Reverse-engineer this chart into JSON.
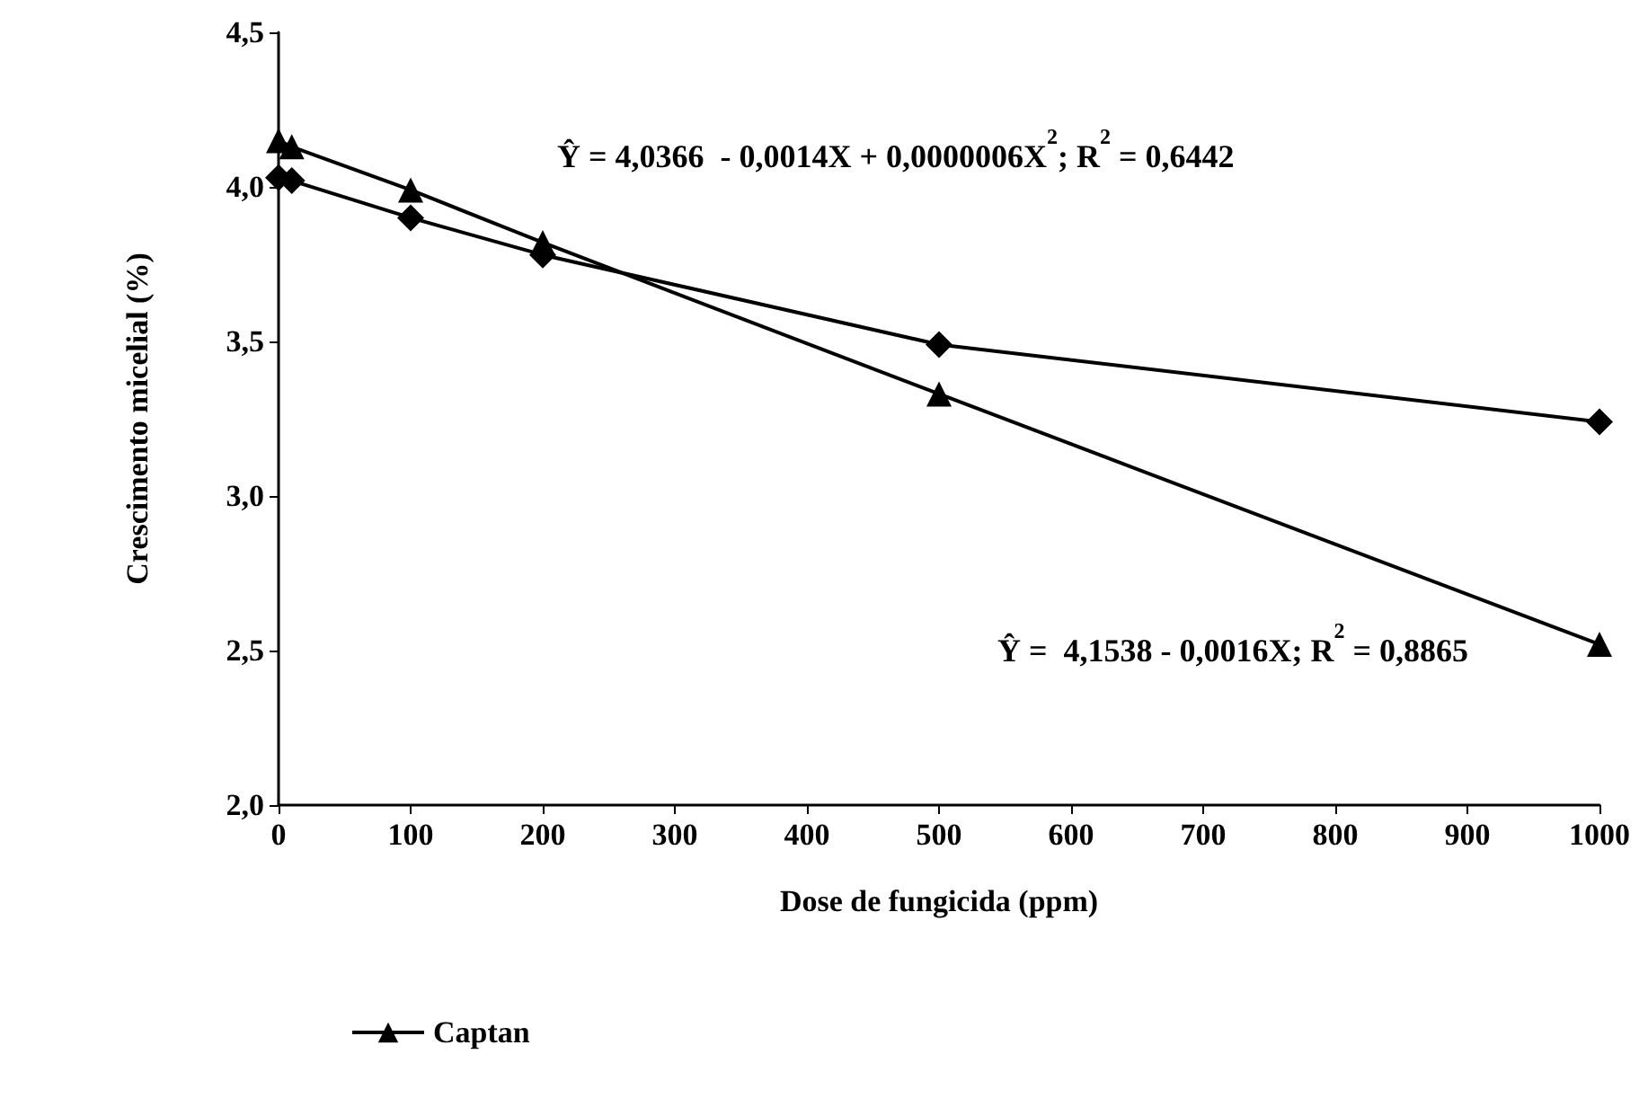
{
  "chart_data": {
    "type": "line",
    "xlabel": "Dose de fungicida (ppm)",
    "ylabel": "Crescimento micelial (%)",
    "x": [
      0,
      10,
      100,
      200,
      500,
      1000
    ],
    "series": [
      {
        "name": "Captan",
        "color": "#000000",
        "marker": "triangle",
        "values": [
          4.15,
          4.13,
          3.99,
          3.82,
          3.33,
          2.52
        ]
      },
      {
        "color": "#000000",
        "marker": "diamond",
        "values": [
          4.03,
          4.02,
          3.9,
          3.78,
          3.49,
          3.24
        ]
      }
    ],
    "xlim": [
      0,
      1000
    ],
    "xticks": [
      0,
      100,
      200,
      300,
      400,
      500,
      600,
      700,
      800,
      900,
      1000
    ],
    "ylim": [
      2,
      4.5
    ],
    "yticks": [
      {
        "value": 2,
        "label": "2,0"
      },
      {
        "value": 2.5,
        "label": "2,5"
      },
      {
        "value": 3,
        "label": "3,0"
      },
      {
        "value": 3.5,
        "label": "3,5"
      },
      {
        "value": 4,
        "label": "4,0"
      },
      {
        "value": 4.5,
        "label": "4,5"
      }
    ],
    "annotations": [
      "Ŷ = 4,0366  - 0,0014X + 0,0000006X$^{2}$; R$^{2}$ = 0,6442",
      "Ŷ =  4,1538 - 0,0016X; R$^{2}$ = 0,8865"
    ],
    "legend": "bottom",
    "grid": false,
    "line_style": "solid"
  }
}
